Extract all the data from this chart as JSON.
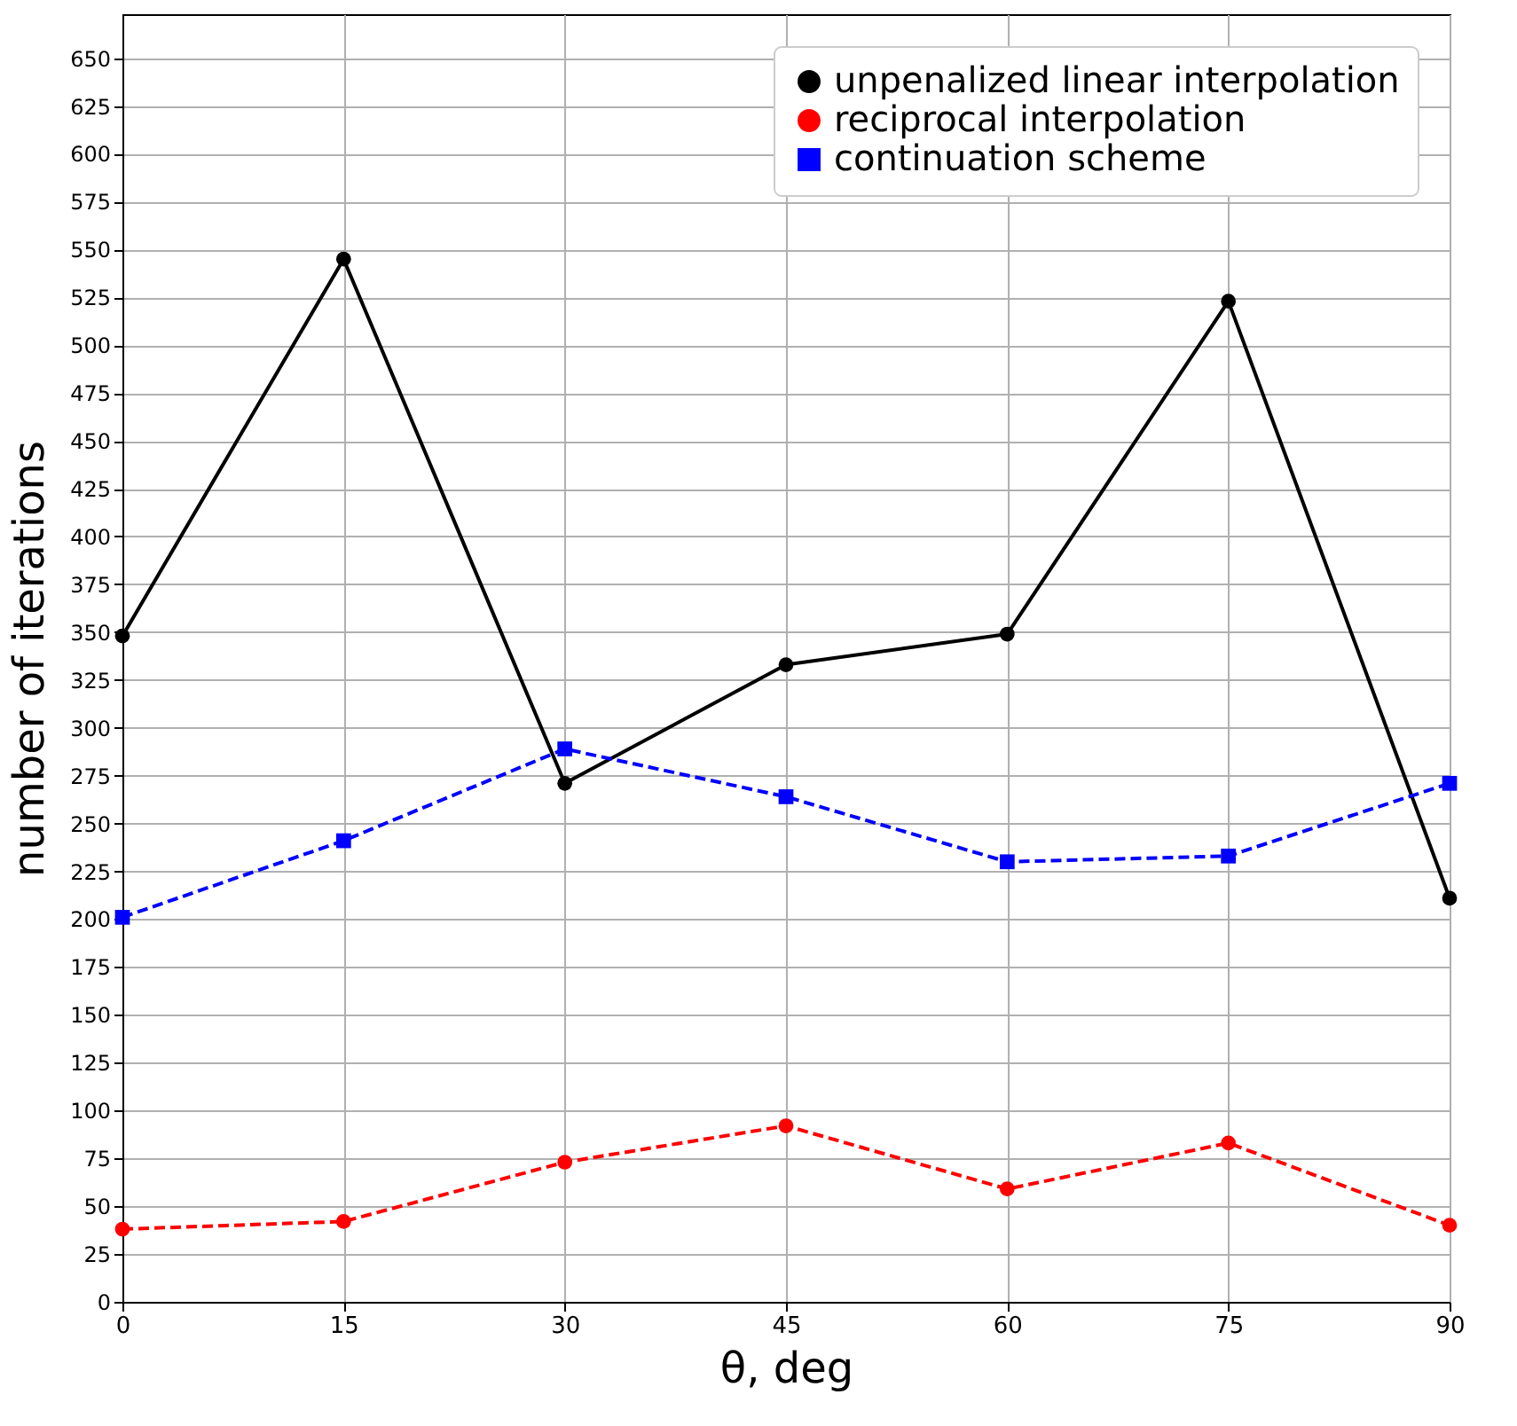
{
  "chart_data": {
    "type": "line",
    "xlabel": "θ, deg",
    "ylabel": "number of iterations",
    "x": [
      0,
      15,
      30,
      45,
      60,
      75,
      90
    ],
    "series": [
      {
        "name": "unpenalized linear interpolation",
        "color": "#000000",
        "marker": "circle",
        "line_style": "solid",
        "values": [
          348,
          545,
          271,
          333,
          349,
          523,
          211
        ]
      },
      {
        "name": "reciprocal interpolation",
        "color": "#ff0000",
        "marker": "circle",
        "line_style": "dashed",
        "values": [
          38,
          42,
          73,
          92,
          59,
          83,
          40
        ]
      },
      {
        "name": "continuation scheme",
        "color": "#0000ff",
        "marker": "square",
        "line_style": "dashed",
        "values": [
          201,
          241,
          289,
          264,
          230,
          233,
          271
        ]
      }
    ],
    "xlim": [
      0,
      90
    ],
    "xticks": [
      0,
      15,
      30,
      45,
      60,
      75,
      90
    ],
    "ylim": [
      0,
      673
    ],
    "yticks": [
      0,
      25,
      50,
      75,
      100,
      125,
      150,
      175,
      200,
      225,
      250,
      275,
      300,
      325,
      350,
      375,
      400,
      425,
      450,
      475,
      500,
      525,
      550,
      575,
      600,
      625,
      650
    ],
    "grid": true,
    "legend": "top right"
  }
}
